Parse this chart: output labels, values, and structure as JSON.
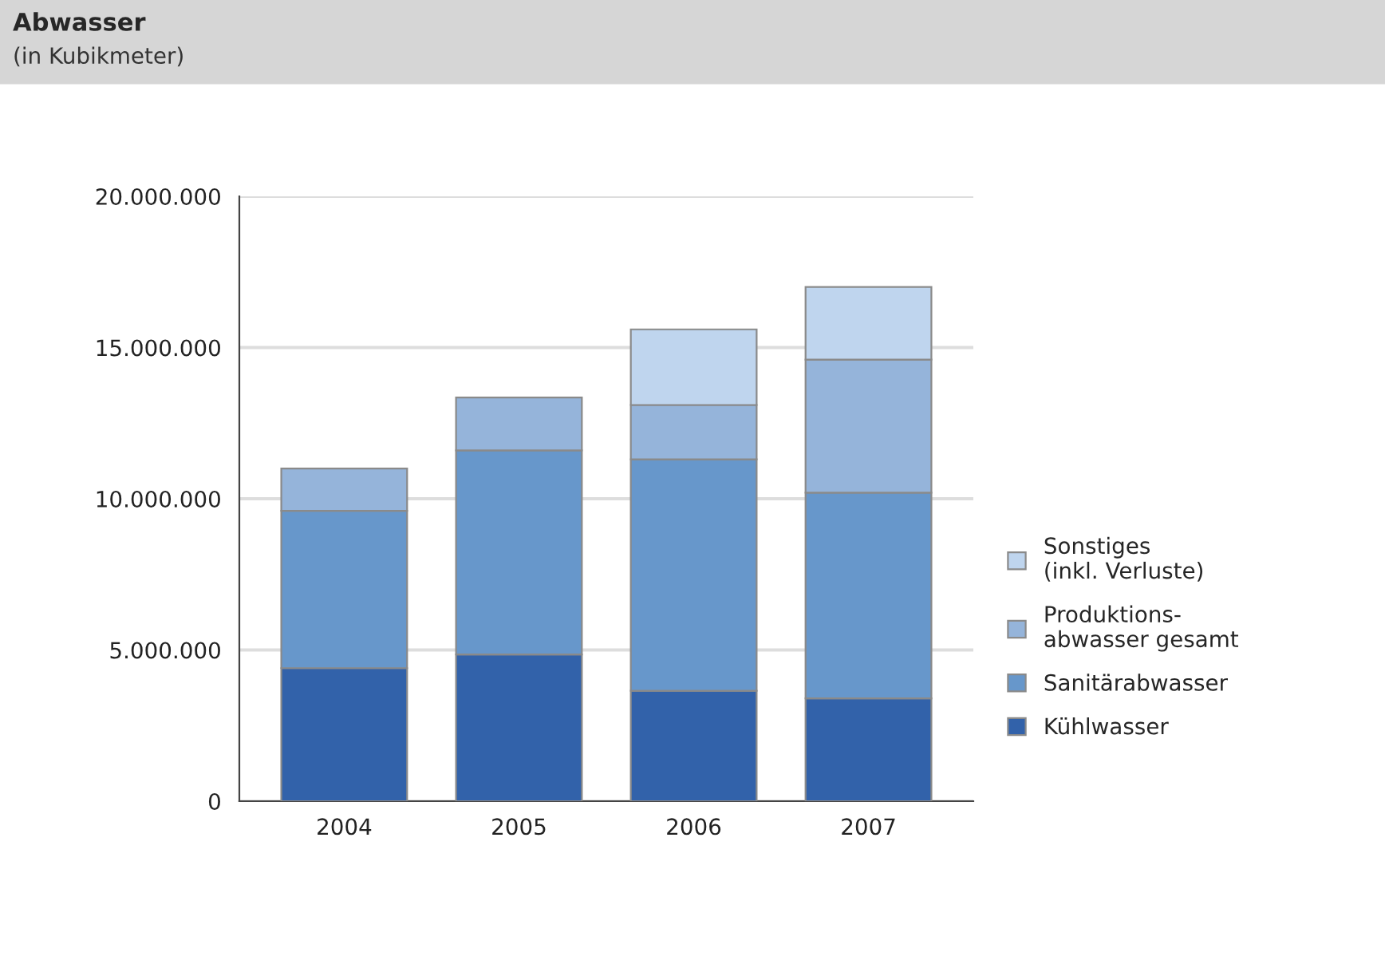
{
  "chart_data": {
    "type": "bar",
    "title": "Abwasser",
    "subtitle": "(in Kubikmeter)",
    "categories": [
      "2004",
      "2005",
      "2006",
      "2007"
    ],
    "stacked": true,
    "series": [
      {
        "name": "Kühlwasser",
        "color": "#3262aa",
        "values": [
          4400000,
          4850000,
          3650000,
          3400000
        ]
      },
      {
        "name": "Sanitärabwasser",
        "color": "#6797cb",
        "values": [
          5200000,
          6750000,
          7650000,
          6800000
        ]
      },
      {
        "name": "Produktions-\nabwasser gesamt",
        "color": "#95b4da",
        "values": [
          1400000,
          1750000,
          1800000,
          4400000
        ]
      },
      {
        "name": "Sonstiges\n(inkl. Verluste)",
        "color": "#bfd5ee",
        "values": [
          null,
          null,
          2500000,
          2400000
        ]
      }
    ],
    "ylim": [
      0,
      20000000
    ],
    "yticks": [
      0,
      {
        "value": 5000000,
        "label": "5.000.000"
      },
      {
        "value": 10000000,
        "label": "10.000.000"
      },
      {
        "value": 15000000,
        "label": "15.000.000"
      },
      {
        "value": 20000000,
        "label": "20.000.000"
      }
    ],
    "grid": "y",
    "legend": "right"
  }
}
